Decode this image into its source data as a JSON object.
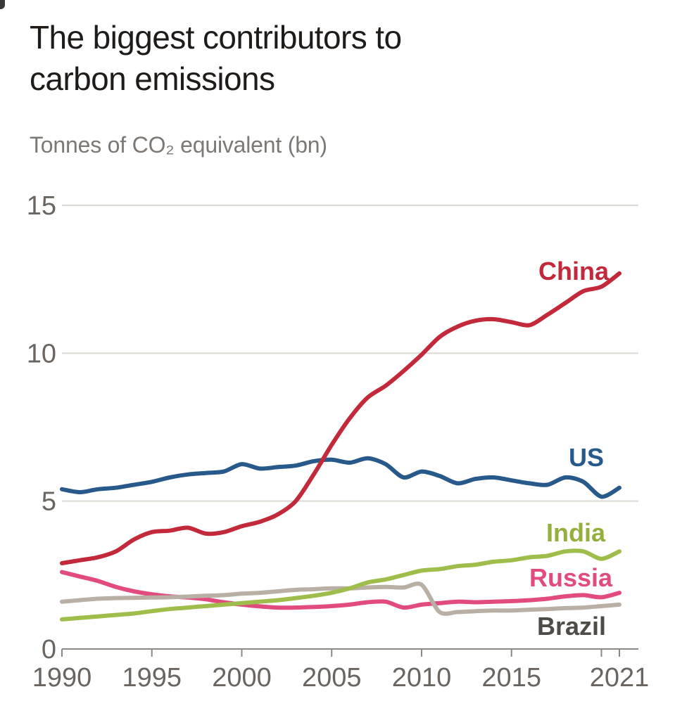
{
  "page": {
    "title_line1": "The biggest contributors to",
    "title_line2": "carbon emissions",
    "subtitle": "Tonnes of CO₂ equivalent (bn)"
  },
  "colors": {
    "background": "#ffffff",
    "title_text": "#1e1b19",
    "subtitle_text": "#7d7873",
    "axis_line": "#8d8883",
    "gridline": "#dcd8d3",
    "tick_label": "#6a6560",
    "china": "#c2293a",
    "us": "#27598b",
    "india": "#9fbd4b",
    "russia": "#e24b7d",
    "brazil_line": "#b9afa5",
    "brazil_label": "#4f4b47"
  },
  "chart_data": {
    "type": "line",
    "title": "The biggest contributors to carbon emissions",
    "ylabel": "Tonnes of CO₂ equivalent (bn)",
    "xlabel": "",
    "xlim": [
      1990,
      2021
    ],
    "ylim": [
      0,
      15
    ],
    "grid": "horizontal gridlines at 5, 10, 15",
    "legend_position": "direct labels at right end of lines",
    "y_ticks": [
      0,
      5,
      10,
      15
    ],
    "y_tick_labels": [
      "0",
      "5",
      "10",
      "15"
    ],
    "x_tick_years": [
      1990,
      1995,
      2000,
      2005,
      2010,
      2015,
      2021
    ],
    "x_tick_labels": [
      "1990",
      "1995",
      "2000",
      "2005",
      "2010",
      "2015",
      "2021"
    ],
    "x_minor_tick_years": [
      2020
    ],
    "years": [
      1990,
      1991,
      1992,
      1993,
      1994,
      1995,
      1996,
      1997,
      1998,
      1999,
      2000,
      2001,
      2002,
      2003,
      2004,
      2005,
      2006,
      2007,
      2008,
      2009,
      2010,
      2011,
      2012,
      2013,
      2014,
      2015,
      2016,
      2017,
      2018,
      2019,
      2020,
      2021
    ],
    "series": [
      {
        "name": "China",
        "color": "#c2293a",
        "label_color": "#c2293a",
        "values": [
          2.9,
          3.0,
          3.1,
          3.3,
          3.7,
          3.95,
          4.0,
          4.1,
          3.9,
          3.95,
          4.15,
          4.3,
          4.55,
          5.0,
          5.9,
          6.9,
          7.8,
          8.5,
          8.9,
          9.4,
          9.95,
          10.55,
          10.9,
          11.1,
          11.15,
          11.05,
          10.95,
          11.3,
          11.7,
          12.1,
          12.25,
          12.7
        ]
      },
      {
        "name": "US",
        "color": "#27598b",
        "label_color": "#27598b",
        "values": [
          5.4,
          5.3,
          5.4,
          5.45,
          5.55,
          5.65,
          5.8,
          5.9,
          5.95,
          6.0,
          6.25,
          6.1,
          6.15,
          6.2,
          6.35,
          6.4,
          6.3,
          6.45,
          6.25,
          5.8,
          6.0,
          5.85,
          5.6,
          5.75,
          5.8,
          5.7,
          5.6,
          5.55,
          5.8,
          5.65,
          5.15,
          5.45
        ]
      },
      {
        "name": "India",
        "color": "#9fbd4b",
        "label_color": "#94af3e",
        "values": [
          1.0,
          1.05,
          1.1,
          1.15,
          1.2,
          1.28,
          1.35,
          1.4,
          1.45,
          1.5,
          1.55,
          1.6,
          1.65,
          1.72,
          1.8,
          1.9,
          2.05,
          2.25,
          2.35,
          2.5,
          2.65,
          2.7,
          2.8,
          2.85,
          2.95,
          3.0,
          3.1,
          3.15,
          3.3,
          3.3,
          3.05,
          3.3
        ]
      },
      {
        "name": "Russia",
        "color": "#e24b7d",
        "label_color": "#e24b7d",
        "values": [
          2.6,
          2.45,
          2.3,
          2.1,
          1.95,
          1.85,
          1.78,
          1.74,
          1.68,
          1.58,
          1.5,
          1.44,
          1.4,
          1.4,
          1.42,
          1.45,
          1.5,
          1.58,
          1.6,
          1.4,
          1.5,
          1.55,
          1.6,
          1.58,
          1.6,
          1.62,
          1.65,
          1.7,
          1.78,
          1.82,
          1.75,
          1.9
        ]
      },
      {
        "name": "Brazil",
        "color": "#b9afa5",
        "label_color": "#4f4b47",
        "values": [
          1.6,
          1.65,
          1.7,
          1.72,
          1.73,
          1.74,
          1.75,
          1.77,
          1.8,
          1.82,
          1.87,
          1.9,
          1.95,
          2.0,
          2.02,
          2.05,
          2.05,
          2.08,
          2.1,
          2.08,
          2.17,
          1.25,
          1.25,
          1.28,
          1.3,
          1.3,
          1.33,
          1.35,
          1.38,
          1.4,
          1.45,
          1.5
        ]
      }
    ]
  }
}
